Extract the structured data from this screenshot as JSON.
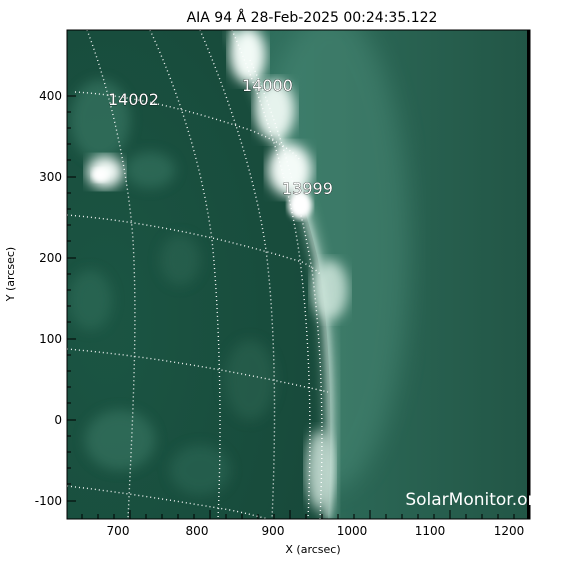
{
  "title": "AIA 94 Å 28-Feb-2025 00:24:35.122",
  "x_axis": {
    "label": "X (arcsec)",
    "range": [
      650,
      1260
    ],
    "ticks": [
      "700",
      "800",
      "900",
      "1000",
      "1100",
      "1200"
    ]
  },
  "y_axis": {
    "label": "Y (arcsec)",
    "range": [
      -120,
      480
    ],
    "ticks": [
      "400",
      "300",
      "200",
      "100",
      "0",
      "-100"
    ]
  },
  "active_regions": [
    {
      "label": "14002"
    },
    {
      "label": "14000"
    },
    {
      "label": "13999"
    }
  ],
  "watermark": "SolarMonitor.org",
  "colors": {
    "background": "#ffffff",
    "sky": "#215a4a",
    "disk": "#19503f",
    "limb_glow": "#cfe6dc",
    "grid": "#ffffff",
    "outside_field": "#000000"
  }
}
